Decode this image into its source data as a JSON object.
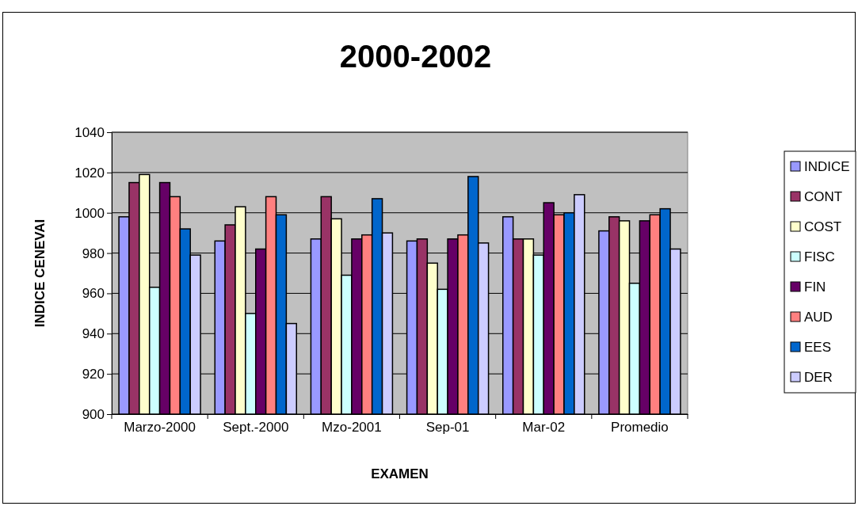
{
  "chart_data": {
    "type": "bar",
    "title": "2000-2002",
    "xlabel": "EXAMEN",
    "ylabel": "INDICE CENEVAI",
    "categories": [
      "Marzo-2000",
      "Sept.-2000",
      "Mzo-2001",
      "Sep-01",
      "Mar-02",
      "Promedio"
    ],
    "ylim": [
      900,
      1040
    ],
    "yticks": [
      900,
      920,
      940,
      960,
      980,
      1000,
      1020,
      1040
    ],
    "grid": "y",
    "legend": "right",
    "series": [
      {
        "name": "INDICE",
        "color": "#9999ff",
        "values": [
          998,
          986,
          987,
          986,
          998,
          991
        ]
      },
      {
        "name": "CONT",
        "color": "#993366",
        "values": [
          1015,
          994,
          1008,
          987,
          987,
          998
        ]
      },
      {
        "name": "COST",
        "color": "#ffffcc",
        "values": [
          1019,
          1003,
          997,
          975,
          987,
          996
        ]
      },
      {
        "name": "FISC",
        "color": "#ccffff",
        "values": [
          963,
          950,
          969,
          962,
          979,
          965
        ]
      },
      {
        "name": "FIN",
        "color": "#660066",
        "values": [
          1015,
          982,
          987,
          987,
          1005,
          996
        ]
      },
      {
        "name": "AUD",
        "color": "#ff8080",
        "values": [
          1008,
          1008,
          989,
          989,
          999,
          999
        ]
      },
      {
        "name": "EES",
        "color": "#0066cc",
        "values": [
          992,
          999,
          1007,
          1018,
          1000,
          1002
        ]
      },
      {
        "name": "DER",
        "color": "#ccccff",
        "values": [
          979,
          945,
          990,
          985,
          1009,
          982
        ]
      }
    ]
  }
}
